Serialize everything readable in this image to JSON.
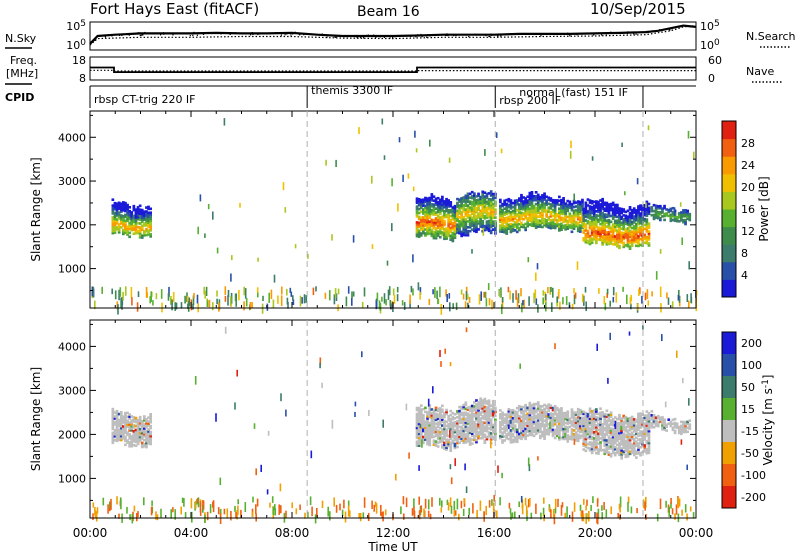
{
  "header": {
    "station": "Fort Hays East (fitACF)",
    "beam": "Beam 16",
    "date": "10/Sep/2015"
  },
  "colors": {
    "scatter_palette": [
      "#1a1ad8",
      "#2850a8",
      "#3c7c6c",
      "#3e8c4c",
      "#58b030",
      "#a8c820",
      "#f0c000",
      "#f89a00",
      "#f06010",
      "#e02010"
    ],
    "velocity_palette": [
      "#1a1ad8",
      "#2850a8",
      "#3c7c6c",
      "#58b030",
      "#bebebe",
      "#f0a000",
      "#f06010",
      "#e02010"
    ],
    "ground_scatter": "#bebebe",
    "frame": "#000000",
    "divider_line": "#b0b0b0"
  },
  "chart_data": [
    {
      "type": "line",
      "panel": "noise",
      "left_label": "N.Sky",
      "right_label": "N.Search",
      "left_ticks": [
        "10^5",
        "10^0"
      ],
      "right_ticks": [
        "10^5",
        "10^0"
      ],
      "x_range_hours": [
        0,
        24
      ],
      "series": [
        {
          "name": "N.Sky",
          "style": "solid",
          "x": [
            0,
            0.3,
            1,
            2,
            3,
            4,
            5,
            6,
            7,
            8,
            9,
            10,
            11,
            12,
            13,
            14,
            15,
            16,
            17,
            18,
            19,
            20,
            21,
            22,
            22.5,
            23,
            23.5,
            24
          ],
          "y": [
            0.2,
            0.5,
            0.55,
            0.6,
            0.6,
            0.6,
            0.62,
            0.6,
            0.6,
            0.62,
            0.55,
            0.5,
            0.5,
            0.5,
            0.52,
            0.55,
            0.55,
            0.55,
            0.58,
            0.58,
            0.58,
            0.6,
            0.62,
            0.65,
            0.7,
            0.8,
            0.9,
            0.85
          ]
        },
        {
          "name": "N.Search",
          "style": "dotted",
          "x": [
            0,
            0.3,
            2,
            4,
            6,
            8,
            10,
            12,
            14,
            16,
            18,
            20,
            22,
            23,
            23.5,
            24
          ],
          "y": [
            0.15,
            0.4,
            0.45,
            0.45,
            0.48,
            0.48,
            0.42,
            0.4,
            0.45,
            0.45,
            0.48,
            0.5,
            0.55,
            0.7,
            0.85,
            0.9
          ]
        }
      ]
    },
    {
      "type": "line",
      "panel": "frequency",
      "left_label_lines": [
        "Freq.",
        "[MHz]"
      ],
      "right_label": "Nave",
      "left_ticks": [
        "18",
        "8"
      ],
      "right_ticks": [
        "60",
        "0"
      ],
      "freq_range_mhz": [
        8,
        18
      ],
      "nave_range": [
        0,
        60
      ],
      "x_range_hours": [
        0,
        24
      ],
      "series": [
        {
          "name": "Freq.",
          "style": "solid",
          "x": [
            0,
            0.95,
            0.95,
            12.95,
            12.95,
            24
          ],
          "y": [
            13.5,
            13.5,
            11.3,
            11.3,
            13.5,
            13.5
          ]
        },
        {
          "name": "Nave",
          "style": "dotted",
          "x": [
            0,
            0.95,
            0.95,
            12.95,
            12.95,
            24
          ],
          "y": [
            25,
            25,
            23,
            23,
            24,
            24
          ]
        }
      ]
    },
    {
      "type": "table",
      "panel": "cpid",
      "label": "CPID",
      "segments": [
        {
          "start": 0.0,
          "text": "rbsp CT-trig 220 IF"
        },
        {
          "start": 8.6,
          "text": "themis 3300 IF"
        },
        {
          "start": 16.05,
          "text": "rbsp 200 IF"
        },
        {
          "start": 16.05,
          "text": "normal (fast) 151 IF"
        },
        {
          "start": 21.9,
          "text": ""
        }
      ],
      "marks_hours": [
        8.6,
        16.05,
        21.9
      ]
    },
    {
      "type": "heatmap",
      "panel": "power",
      "ylabel": "Slant Range [km]",
      "yticks": [
        1000,
        2000,
        3000,
        4000
      ],
      "ylim": [
        100,
        4600
      ],
      "xlim_hours": [
        0,
        24
      ],
      "colorbar_label": "Power [dB]",
      "colorbar_ticks": [
        4,
        8,
        12,
        16,
        20,
        24,
        28
      ],
      "colorbar_range": [
        0,
        32
      ],
      "regions": [
        {
          "t0": 0.85,
          "t1": 2.45,
          "r0": 1800,
          "r1": 2600,
          "core": 2000,
          "peak": 24
        },
        {
          "t0": 12.9,
          "t1": 14.5,
          "r0": 1700,
          "r1": 2700,
          "core": 2050,
          "peak": 28
        },
        {
          "t0": 14.5,
          "t1": 16.1,
          "r0": 1800,
          "r1": 2800,
          "core": 2300,
          "peak": 22
        },
        {
          "t0": 16.2,
          "t1": 19.5,
          "r0": 1900,
          "r1": 2750,
          "core": 2200,
          "peak": 24
        },
        {
          "t0": 19.5,
          "t1": 22.2,
          "r0": 1550,
          "r1": 2600,
          "core": 1800,
          "peak": 28
        },
        {
          "t0": 22.2,
          "t1": 23.8,
          "r0": 2100,
          "r1": 2500,
          "core": 2250,
          "peak": 14
        }
      ]
    },
    {
      "type": "heatmap",
      "panel": "velocity",
      "ylabel": "Slant Range [km]",
      "yticks": [
        1000,
        2000,
        3000,
        4000
      ],
      "ylim": [
        100,
        4600
      ],
      "xlim_hours": [
        0,
        24
      ],
      "colorbar_label": "Velocity [m s^-1]",
      "colorbar_ticks": [
        200,
        100,
        50,
        15,
        -15,
        -50,
        -100,
        -200
      ]
    }
  ],
  "x_axis": {
    "label": "Time UT",
    "ticks": [
      "00:00",
      "04:00",
      "08:00",
      "12:00",
      "16:00",
      "20:00",
      "00:00"
    ],
    "tick_hours": [
      0,
      4,
      8,
      12,
      16,
      20,
      24
    ]
  }
}
